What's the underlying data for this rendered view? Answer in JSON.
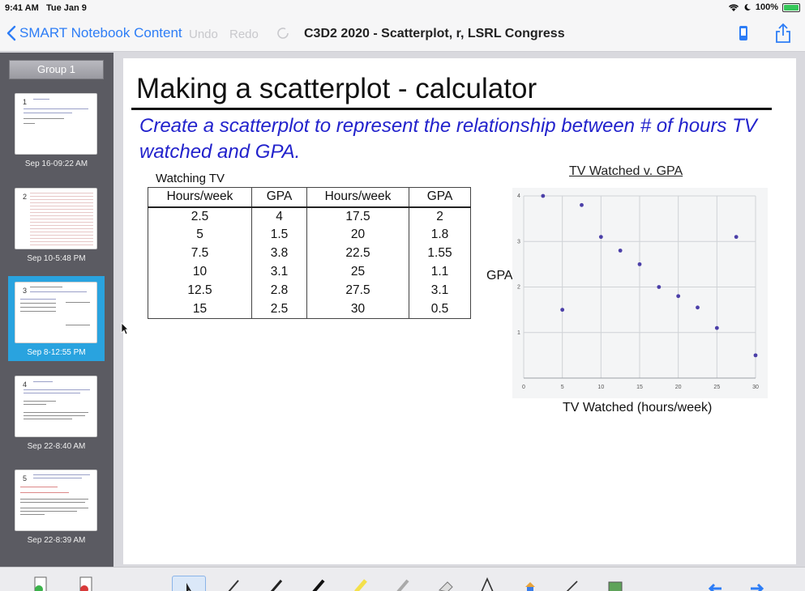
{
  "status": {
    "time": "9:41 AM",
    "date": "Tue Jan 9",
    "battery": "100%",
    "battery_level": 1.0
  },
  "nav": {
    "back_label": "SMART Notebook Content",
    "undo_label": "Undo",
    "redo_label": "Redo",
    "title": "C3D2 2020 - Scatterplot, r, LSRL Congress"
  },
  "sidebar": {
    "group_label": "Group 1",
    "pages": [
      {
        "number": "1",
        "date": "Sep 16-09:22 AM",
        "selected": false
      },
      {
        "number": "2",
        "date": "Sep 10-5:48 PM",
        "selected": false
      },
      {
        "number": "3",
        "date": "Sep 8-12:55 PM",
        "selected": true
      },
      {
        "number": "4",
        "date": "Sep 22-8:40 AM",
        "selected": false
      },
      {
        "number": "5",
        "date": "Sep 22-8:39 AM",
        "selected": false
      }
    ]
  },
  "slide": {
    "title": "Making a scatterplot - calculator",
    "prompt": "Create a scatterplot to represent the relationship between # of hours TV watched and GPA.",
    "table_caption": "Watching TV",
    "table_headers": [
      "Hours/week",
      "GPA",
      "Hours/week",
      "GPA"
    ],
    "table_rows": [
      [
        "2.5",
        "4",
        "17.5",
        "2"
      ],
      [
        "5",
        "1.5",
        "20",
        "1.8"
      ],
      [
        "7.5",
        "3.8",
        "22.5",
        "1.55"
      ],
      [
        "10",
        "3.1",
        "25",
        "1.1"
      ],
      [
        "12.5",
        "2.8",
        "27.5",
        "3.1"
      ],
      [
        "15",
        "2.5",
        "30",
        "0.5"
      ]
    ]
  },
  "chart_data": {
    "type": "scatter",
    "title": "TV Watched v. GPA",
    "xlabel": "TV Watched (hours/week)",
    "ylabel": "GPA",
    "xlim": [
      0,
      30
    ],
    "ylim": [
      0,
      4
    ],
    "xticks": [
      "0",
      "5",
      "10",
      "15",
      "20",
      "25",
      "30"
    ],
    "yticks": [
      "1",
      "2",
      "3",
      "4"
    ],
    "grid": true,
    "point_color": "#4b3fa8",
    "x": [
      2.5,
      5,
      7.5,
      10,
      12.5,
      15,
      17.5,
      20,
      22.5,
      25,
      27.5,
      30
    ],
    "y": [
      4,
      1.5,
      3.8,
      3.1,
      2.8,
      2.5,
      2,
      1.8,
      1.55,
      1.1,
      3.1,
      0.5
    ]
  },
  "toolbar": {
    "tools": [
      "add-page-icon",
      "delete-page-icon",
      "select-icon",
      "pen-select-icon",
      "pen-icon",
      "marker-icon",
      "highlighter-icon",
      "creative-pen-icon",
      "eraser-icon",
      "text-icon",
      "fill-icon",
      "line-icon",
      "image-icon",
      "previous-page-icon",
      "next-page-icon"
    ]
  }
}
